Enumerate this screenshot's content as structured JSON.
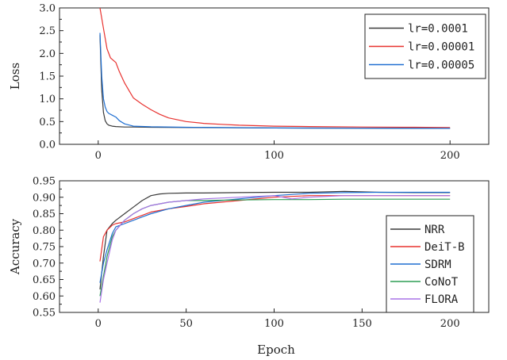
{
  "chart_data": [
    {
      "type": "line",
      "title": "",
      "xlabel": "",
      "ylabel": "Loss",
      "xlim": [
        -22,
        222
      ],
      "ylim": [
        0.0,
        3.0
      ],
      "xticks": [
        0,
        100,
        200
      ],
      "yticks": [
        0.0,
        0.5,
        1.0,
        1.5,
        2.0,
        2.5,
        3.0
      ],
      "ytick_labels": [
        "0.0",
        "0.5",
        "1.0",
        "1.5",
        "2.0",
        "2.5",
        "3.0"
      ],
      "legend_position": "top-right",
      "series": [
        {
          "name": "lr=0.0001",
          "color": "#3a3a3a",
          "x": [
            1,
            2,
            3,
            4,
            5,
            6,
            8,
            10,
            15,
            20,
            30,
            50,
            100,
            150,
            200
          ],
          "y": [
            2.4,
            1.2,
            0.7,
            0.52,
            0.45,
            0.42,
            0.4,
            0.39,
            0.38,
            0.38,
            0.375,
            0.37,
            0.36,
            0.355,
            0.35
          ]
        },
        {
          "name": "lr=0.00001",
          "color": "#e8322f",
          "x": [
            1,
            3,
            5,
            7,
            10,
            12,
            15,
            18,
            20,
            25,
            30,
            35,
            40,
            50,
            60,
            70,
            80,
            100,
            120,
            150,
            180,
            200
          ],
          "y": [
            3.0,
            2.55,
            2.1,
            1.9,
            1.8,
            1.6,
            1.35,
            1.15,
            1.02,
            0.88,
            0.76,
            0.66,
            0.58,
            0.5,
            0.46,
            0.44,
            0.42,
            0.4,
            0.39,
            0.38,
            0.375,
            0.37
          ]
        },
        {
          "name": "lr=0.00005",
          "color": "#1f6fd1",
          "x": [
            1,
            2,
            3,
            4,
            5,
            6,
            8,
            10,
            12,
            15,
            20,
            30,
            50,
            100,
            150,
            200
          ],
          "y": [
            2.45,
            1.5,
            1.0,
            0.82,
            0.72,
            0.68,
            0.64,
            0.6,
            0.52,
            0.45,
            0.4,
            0.385,
            0.375,
            0.36,
            0.355,
            0.35
          ]
        }
      ]
    },
    {
      "type": "line",
      "title": "",
      "xlabel": "Epoch",
      "ylabel": "Accuracy",
      "xlim": [
        -22,
        222
      ],
      "ylim": [
        0.55,
        0.95
      ],
      "xticks": [
        0,
        50,
        100,
        150,
        200
      ],
      "yticks": [
        0.55,
        0.6,
        0.65,
        0.7,
        0.75,
        0.8,
        0.85,
        0.9,
        0.95
      ],
      "ytick_labels": [
        "0.55",
        "0.60",
        "0.65",
        "0.70",
        "0.75",
        "0.80",
        "0.85",
        "0.90",
        "0.95"
      ],
      "legend_position": "bottom-right",
      "series": [
        {
          "name": "NRR",
          "color": "#3a3a3a",
          "x": [
            1,
            3,
            5,
            8,
            10,
            15,
            20,
            25,
            30,
            35,
            40,
            50,
            60,
            80,
            100,
            120,
            140,
            160,
            180,
            200
          ],
          "y": [
            0.62,
            0.72,
            0.8,
            0.82,
            0.83,
            0.85,
            0.87,
            0.89,
            0.905,
            0.91,
            0.912,
            0.913,
            0.913,
            0.914,
            0.915,
            0.915,
            0.918,
            0.915,
            0.914,
            0.914
          ]
        },
        {
          "name": "DeiT-B",
          "color": "#e8322f",
          "x": [
            1,
            3,
            5,
            8,
            10,
            15,
            20,
            25,
            30,
            40,
            50,
            60,
            80,
            100,
            120,
            140,
            160,
            180,
            200
          ],
          "y": [
            0.705,
            0.78,
            0.8,
            0.815,
            0.82,
            0.825,
            0.835,
            0.845,
            0.855,
            0.865,
            0.872,
            0.88,
            0.89,
            0.9,
            0.905,
            0.905,
            0.905,
            0.905,
            0.905
          ]
        },
        {
          "name": "SDRM",
          "color": "#1f6fd1",
          "x": [
            1,
            3,
            5,
            8,
            10,
            15,
            20,
            25,
            30,
            40,
            50,
            60,
            80,
            100,
            120,
            140,
            160,
            180,
            200
          ],
          "y": [
            0.64,
            0.7,
            0.74,
            0.79,
            0.81,
            0.82,
            0.83,
            0.84,
            0.85,
            0.865,
            0.875,
            0.885,
            0.895,
            0.905,
            0.912,
            0.914,
            0.915,
            0.915,
            0.915
          ]
        },
        {
          "name": "CoNoT",
          "color": "#2e9e55",
          "x": [
            1,
            3,
            5,
            8,
            10,
            15,
            20,
            25,
            30,
            40,
            50,
            60,
            80,
            100,
            120,
            140,
            160,
            180,
            200
          ],
          "y": [
            0.6,
            0.66,
            0.72,
            0.78,
            0.8,
            0.83,
            0.85,
            0.865,
            0.875,
            0.885,
            0.89,
            0.89,
            0.892,
            0.893,
            0.893,
            0.894,
            0.894,
            0.894,
            0.894
          ]
        },
        {
          "name": "FLORA",
          "color": "#a873e6",
          "x": [
            1,
            3,
            5,
            8,
            10,
            15,
            20,
            25,
            30,
            40,
            50,
            60,
            80,
            100,
            110,
            120,
            140,
            160,
            180,
            200
          ],
          "y": [
            0.58,
            0.65,
            0.7,
            0.77,
            0.8,
            0.83,
            0.85,
            0.865,
            0.875,
            0.885,
            0.89,
            0.895,
            0.9,
            0.905,
            0.895,
            0.9,
            0.905,
            0.905,
            0.905,
            0.905
          ]
        }
      ]
    }
  ]
}
